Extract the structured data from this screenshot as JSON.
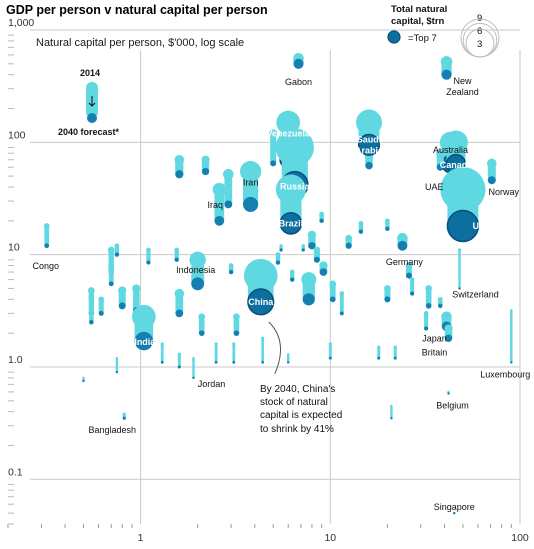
{
  "chart_data": {
    "type": "scatter",
    "title": "GDP per person v natural capital per person",
    "ylabel": "Natural capital per person, $'000, log scale",
    "x_scale": "log",
    "y_scale": "log",
    "xlim": [
      0.2,
      100
    ],
    "ylim": [
      0.04,
      1000
    ],
    "x_ticks": [
      "1",
      "10",
      "100"
    ],
    "y_ticks": [
      "1,000",
      "100",
      "10",
      "1.0",
      "0.1"
    ],
    "legend": {
      "title": "Total natural capital, $trn",
      "sizes": [
        "9",
        "6",
        "3"
      ],
      "top7": "=Top 7"
    },
    "key": {
      "from_label": "2014",
      "to_label": "2040 forecast*"
    },
    "annotation": "By 2040, China's stock of natural capital is expected to shrink by 41%",
    "countries": [
      {
        "name": "Gabon",
        "x": 6.8,
        "y2014": 560,
        "y2040": 500,
        "cap": 0.5,
        "top7": false
      },
      {
        "name": "New Zealand",
        "x": 41,
        "y2014": 520,
        "y2040": 400,
        "cap": 0.6,
        "top7": false
      },
      {
        "name": "Venezuela",
        "x": 6.0,
        "y2014": 150,
        "y2040": 70,
        "cap": 2.5,
        "top7": true
      },
      {
        "name": "Russia",
        "x": 6.5,
        "y2014": 90,
        "y2040": 42,
        "cap": 6.5,
        "top7": true
      },
      {
        "name": "Saudi Arabia",
        "x": 16,
        "y2014": 150,
        "y2040": 95,
        "cap": 3.0,
        "top7": true
      },
      {
        "name": "Australia",
        "x": 43,
        "y2014": 100,
        "y2040": 64,
        "cap": 2.0,
        "top7": true
      },
      {
        "name": "Canada",
        "x": 46,
        "y2014": 100,
        "y2040": 64,
        "cap": 2.5,
        "top7": true
      },
      {
        "name": "UAE",
        "x": 38,
        "y2014": 80,
        "y2040": 60,
        "cap": 0.3,
        "top7": false
      },
      {
        "name": "Norway",
        "x": 71,
        "y2014": 65,
        "y2040": 46,
        "cap": 0.4,
        "top7": false
      },
      {
        "name": "US",
        "x": 50,
        "y2014": 38,
        "y2040": 18,
        "cap": 9.0,
        "top7": true
      },
      {
        "name": "Iran",
        "x": 3.8,
        "y2014": 55,
        "y2040": 28,
        "cap": 2.0,
        "top7": false
      },
      {
        "name": "Iraq",
        "x": 2.6,
        "y2014": 38,
        "y2040": 20,
        "cap": 0.8,
        "top7": false
      },
      {
        "name": "Brazil",
        "x": 6.2,
        "y2014": 38,
        "y2040": 19,
        "cap": 4.0,
        "top7": true
      },
      {
        "name": "Congo",
        "x": 0.32,
        "y2014": 18,
        "y2040": 12,
        "cap": 0.15,
        "top7": false
      },
      {
        "name": "Indonesia",
        "x": 2.0,
        "y2014": 9,
        "y2040": 5.5,
        "cap": 1.2,
        "top7": false
      },
      {
        "name": "China",
        "x": 4.3,
        "y2014": 6.5,
        "y2040": 3.8,
        "cap": 5.0,
        "top7": true
      },
      {
        "name": "India",
        "x": 1.04,
        "y2014": 2.8,
        "y2040": 1.7,
        "cap": 2.5,
        "top7": false
      },
      {
        "name": "Germany",
        "x": 24,
        "y2014": 14,
        "y2040": 12,
        "cap": 0.5,
        "top7": false
      },
      {
        "name": "Switzerland",
        "x": 48,
        "y2014": 11,
        "y2040": 5.0,
        "cap": 0.05,
        "top7": false
      },
      {
        "name": "Japan",
        "x": 41,
        "y2014": 2.8,
        "y2040": 2.3,
        "cap": 0.5,
        "top7": false
      },
      {
        "name": "Britain",
        "x": 42,
        "y2014": 2.2,
        "y2040": 1.8,
        "cap": 0.3,
        "top7": false
      },
      {
        "name": "Luxembourg",
        "x": 90,
        "y2014": 3.2,
        "y2040": 1.1,
        "cap": 0.01,
        "top7": false
      },
      {
        "name": "Jordan",
        "x": 1.9,
        "y2014": 1.2,
        "y2040": 0.8,
        "cap": 0.01,
        "top7": false
      },
      {
        "name": "Bangladesh",
        "x": 0.82,
        "y2014": 0.38,
        "y2040": 0.35,
        "cap": 0.05,
        "top7": false
      },
      {
        "name": "Belgium",
        "x": 42,
        "y2014": 0.6,
        "y2040": 0.58,
        "cap": 0.01,
        "top7": false
      },
      {
        "name": "Singapore",
        "x": 45,
        "y2014": 0.05,
        "y2040": 0.05,
        "cap": 0.001,
        "top7": false
      }
    ],
    "others": [
      [
        0.55,
        4.8,
        3.0,
        0.2
      ],
      [
        0.55,
        4.2,
        2.5,
        0.15
      ],
      [
        0.7,
        11,
        7.0,
        0.2
      ],
      [
        0.7,
        8,
        5.5,
        0.15
      ],
      [
        0.8,
        4.8,
        3.5,
        0.3
      ],
      [
        0.95,
        5.0,
        3.2,
        0.3
      ],
      [
        0.5,
        0.8,
        0.75,
        0.01
      ],
      [
        0.75,
        1.2,
        0.9,
        0.02
      ],
      [
        0.62,
        4.0,
        3.0,
        0.15
      ],
      [
        1.6,
        70,
        52,
        0.4
      ],
      [
        2.2,
        70,
        55,
        0.3
      ],
      [
        1.6,
        4.5,
        3.0,
        0.4
      ],
      [
        2.1,
        2.8,
        2.0,
        0.2
      ],
      [
        1.3,
        1.6,
        1.1,
        0.05
      ],
      [
        1.6,
        1.3,
        1.0,
        0.05
      ],
      [
        2.5,
        1.6,
        1.1,
        0.05
      ],
      [
        3.1,
        1.6,
        1.1,
        0.05
      ],
      [
        3.2,
        2.8,
        2.0,
        0.2
      ],
      [
        2.0,
        10,
        8,
        0.15
      ],
      [
        5.3,
        10,
        8.5,
        0.1
      ],
      [
        5.5,
        12,
        11,
        0.05
      ],
      [
        7.2,
        12,
        11,
        0.05
      ],
      [
        8.0,
        15,
        12,
        0.3
      ],
      [
        8.5,
        11,
        9,
        0.2
      ],
      [
        9.2,
        8,
        7,
        0.3
      ],
      [
        6.3,
        7,
        6,
        0.1
      ],
      [
        7.7,
        6,
        4,
        1.0
      ],
      [
        10.3,
        5.5,
        4,
        0.2
      ],
      [
        11.5,
        4.5,
        3.0,
        0.1
      ],
      [
        12.5,
        14,
        12,
        0.2
      ],
      [
        14.5,
        19,
        16,
        0.1
      ],
      [
        9.0,
        23,
        20,
        0.1
      ],
      [
        20,
        20,
        17,
        0.1
      ],
      [
        20,
        5.0,
        4.0,
        0.2
      ],
      [
        26,
        8,
        6.5,
        0.2
      ],
      [
        27,
        6,
        4.5,
        0.1
      ],
      [
        33,
        5,
        3.5,
        0.2
      ],
      [
        38,
        4,
        3.5,
        0.1
      ],
      [
        32,
        3,
        2.2,
        0.1
      ],
      [
        18,
        1.5,
        1.2,
        0.05
      ],
      [
        22,
        1.5,
        1.2,
        0.05
      ],
      [
        10,
        1.6,
        1.2,
        0.05
      ],
      [
        21,
        0.45,
        0.35,
        0.01
      ],
      [
        6.0,
        1.3,
        1.1,
        0.02
      ],
      [
        4.4,
        1.8,
        1.1,
        0.05
      ],
      [
        1.1,
        11,
        8.5,
        0.1
      ],
      [
        3.0,
        8,
        7,
        0.1
      ],
      [
        1.55,
        11,
        9,
        0.1
      ],
      [
        0.75,
        12,
        10,
        0.1
      ],
      [
        2.9,
        52,
        28,
        0.5
      ],
      [
        5.0,
        120,
        65,
        0.3
      ],
      [
        16,
        75,
        62,
        0.3
      ]
    ]
  }
}
